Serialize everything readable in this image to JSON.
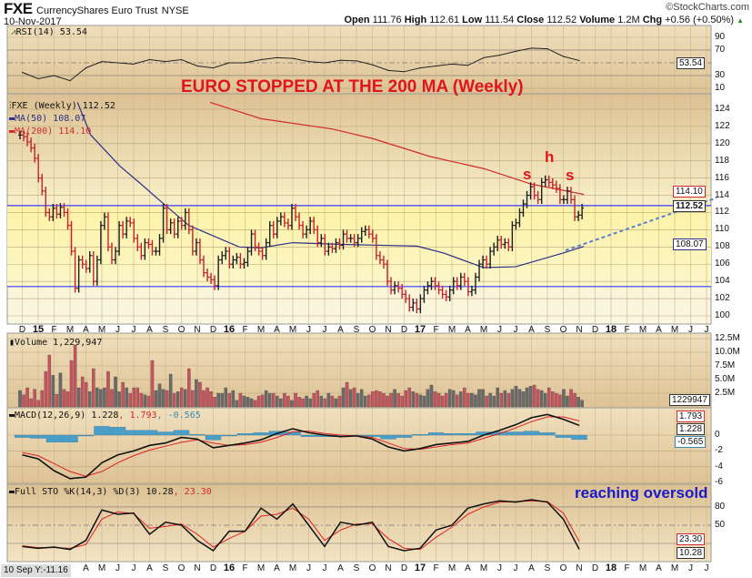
{
  "header": {
    "symbol": "FXE",
    "name": "CurrencyShares Euro Trust",
    "exchange": "NYSE",
    "date": "10-Nov-2017",
    "watermark": "©StockCharts.com",
    "open_label": "Open",
    "open": "111.76",
    "high_label": "High",
    "high": "112.61",
    "low_label": "Low",
    "low": "111.54",
    "close_label": "Close",
    "close": "112.52",
    "volume_label": "Volume",
    "volume": "1.2M",
    "chg_label": "Chg",
    "chg": "+0.56 (+0.50%)",
    "up_arrow": "▲"
  },
  "colors": {
    "up_bar": "#1e1e1e",
    "down_bar": "#c8202a",
    "ma50": "#2b2f8a",
    "ma200": "#d02a2a",
    "support_line": "#3a3aff",
    "trendline": "#5a7fd0",
    "histogram": "#4a9fc8",
    "annotation_red": "#e0151b",
    "annotation_blue": "#1a1acc"
  },
  "annotations": {
    "title": "EURO STOPPED AT THE 200 MA (Weekly)",
    "left_shoulder": "s",
    "head": "h",
    "right_shoulder": "s",
    "oversold": "reaching oversold"
  },
  "axis": {
    "months": [
      "D",
      "15",
      "F",
      "M",
      "A",
      "M",
      "J",
      "J",
      "A",
      "S",
      "O",
      "N",
      "D",
      "16",
      "F",
      "M",
      "A",
      "M",
      "J",
      "J",
      "A",
      "S",
      "O",
      "N",
      "D",
      "17",
      "F",
      "M",
      "A",
      "M",
      "J",
      "J",
      "A",
      "S",
      "O",
      "N",
      "D",
      "18",
      "F",
      "M",
      "A",
      "M",
      "J",
      "J"
    ],
    "bottom_info": "10 Sep Y:-11.16"
  },
  "chart_data": [
    {
      "type": "ohlc",
      "panel": "price",
      "label": "FXE (Weekly) 112.52",
      "start": "Dec 2014",
      "frequency": "weekly",
      "yticks": [
        "100",
        "102",
        "104",
        "106",
        "108",
        "110",
        "112",
        "114",
        "116",
        "118",
        "120",
        "122",
        "124"
      ],
      "ylim": [
        100,
        125
      ],
      "closes": [
        121.0,
        120.8,
        120.2,
        119.5,
        118.3,
        116.0,
        114.5,
        112.0,
        111.5,
        112.5,
        111.8,
        112.6,
        112.0,
        110.5,
        107.5,
        103.2,
        106.5,
        106.0,
        105.5,
        107.0,
        104.0,
        106.5,
        110.5,
        111.5,
        108.0,
        106.5,
        107.5,
        110.5,
        109.5,
        111.0,
        110.8,
        109.0,
        108.0,
        107.0,
        108.5,
        108.3,
        107.5,
        107.5,
        109.0,
        112.5,
        110.0,
        110.8,
        109.5,
        111.0,
        110.5,
        112.0,
        110.0,
        107.5,
        108.5,
        106.5,
        105.0,
        104.5,
        104.2,
        103.5,
        106.5,
        107.0,
        107.5,
        106.0,
        106.5,
        106.8,
        106.0,
        106.2,
        107.5,
        109.5,
        108.0,
        107.5,
        107.0,
        108.5,
        110.5,
        109.5,
        111.0,
        111.5,
        110.8,
        110.5,
        112.5,
        111.5,
        110.5,
        109.5,
        110.0,
        111.0,
        110.0,
        108.5,
        109.0,
        107.5,
        108.0,
        107.8,
        108.5,
        108.2,
        109.5,
        109.0,
        109.0,
        108.5,
        109.0,
        109.8,
        110.0,
        109.5,
        109.0,
        107.0,
        106.5,
        106.0,
        104.0,
        103.0,
        103.5,
        103.2,
        102.5,
        102.0,
        101.0,
        101.5,
        100.8,
        102.0,
        103.0,
        103.5,
        104.0,
        103.5,
        103.0,
        102.5,
        102.2,
        103.0,
        104.0,
        103.5,
        104.5,
        104.0,
        102.8,
        103.0,
        104.5,
        106.0,
        106.5,
        106.0,
        107.5,
        108.0,
        108.8,
        108.3,
        108.5,
        108.0,
        110.5,
        110.8,
        112.0,
        113.0,
        114.0,
        115.0,
        114.0,
        113.5,
        115.5,
        115.8,
        115.5,
        115.2,
        114.8,
        113.5,
        113.5,
        114.5,
        113.5,
        111.5,
        111.7,
        112.52
      ],
      "ma50": {
        "label": "MA(50) 108.07",
        "last": "108.07",
        "points": [
          [
            "2015-03-15",
            124.8
          ],
          [
            "2015-04-10",
            121.0
          ],
          [
            "2015-06-05",
            117.4
          ],
          [
            "2015-07-15",
            115.3
          ],
          [
            "2015-08-20",
            113.4
          ],
          [
            "2015-10-15",
            110.5
          ],
          [
            "2016-01-20",
            108.0
          ],
          [
            "2016-03-01",
            107.9
          ],
          [
            "2016-05-01",
            108.5
          ],
          [
            "2016-08-01",
            108.3
          ],
          [
            "2016-10-15",
            108.2
          ],
          [
            "2016-12-25",
            108.1
          ],
          [
            "2017-02-15",
            107.3
          ],
          [
            "2017-05-01",
            105.6
          ],
          [
            "2017-07-01",
            105.7
          ],
          [
            "2017-10-01",
            107.3
          ],
          [
            "2017-11-10",
            108.07
          ]
        ]
      },
      "ma200": {
        "label": "MA(200) 114.10",
        "last": "114.10",
        "points": [
          [
            "2015-11-25",
            124.8
          ],
          [
            "2016-03-01",
            122.9
          ],
          [
            "2016-07-15",
            121.7
          ],
          [
            "2016-10-01",
            120.6
          ],
          [
            "2017-01-20",
            118.5
          ],
          [
            "2017-05-01",
            117.1
          ],
          [
            "2017-08-01",
            115.3
          ],
          [
            "2017-11-10",
            114.1
          ]
        ]
      },
      "hlines": [
        112.8,
        103.4
      ],
      "trendline": [
        [
          "2017-10-05",
          107.6
        ],
        [
          "2018-07-20",
          113.7
        ]
      ],
      "last_tag": "112.52"
    },
    {
      "type": "line",
      "panel": "rsi",
      "label": "RSI(14) 53.54",
      "last_tag": "53.54",
      "frequency": "monthly",
      "start": "Dec 2014",
      "yticks": [
        "90",
        "70",
        "30",
        "10"
      ],
      "ylim": [
        0,
        100
      ],
      "levels": [
        70,
        30
      ],
      "midline": 50,
      "values": [
        35,
        25,
        30,
        22,
        42,
        52,
        50,
        48,
        55,
        52,
        55,
        45,
        42,
        50,
        50,
        55,
        58,
        57,
        52,
        50,
        54,
        53,
        47,
        38,
        36,
        42,
        45,
        48,
        46,
        58,
        62,
        68,
        73,
        72,
        60,
        53.54
      ]
    },
    {
      "type": "bar",
      "panel": "volume",
      "label": "Volume 1,229,947",
      "unit": "M",
      "last_tag": "1229947",
      "frequency": "weekly",
      "start": "Dec 2014",
      "yticks": [
        "12.5M",
        "10.0M",
        "7.5M",
        "5.0M",
        "2.5M"
      ],
      "ylim": [
        0,
        12.5
      ],
      "values": [
        3.0,
        2.2,
        3.5,
        1.5,
        3.2,
        1.2,
        3.0,
        6.5,
        9.5,
        5.8,
        2.3,
        6.2,
        3.2,
        2.8,
        8.5,
        11.3,
        3.5,
        5.5,
        4.5,
        2.8,
        7.0,
        3.5,
        3.2,
        3.5,
        6.5,
        3.2,
        5.5,
        2.8,
        4.5,
        3.5,
        2.5,
        3.5,
        3.5,
        2.5,
        2.2,
        2.0,
        8.5,
        3.0,
        4.2,
        3.2,
        3.0,
        6.0,
        2.5,
        2.8,
        3.5,
        3.2,
        7.0,
        3.0,
        5.0,
        4.5,
        3.0,
        3.5,
        2.8,
        1.8,
        2.5,
        2.5,
        3.5,
        2.5,
        3.0,
        1.2,
        2.5,
        2.0,
        1.8,
        1.5,
        1.2,
        2.0,
        2.2,
        3.0,
        2.5,
        2.5,
        2.0,
        1.5,
        2.5,
        2.0,
        1.2,
        2.5,
        1.8,
        1.5,
        2.0,
        1.5,
        2.5,
        3.0,
        2.0,
        1.5,
        2.5,
        2.0,
        1.5,
        2.0,
        3.5,
        4.5,
        3.2,
        3.5,
        2.5,
        3.2,
        2.0,
        2.2,
        2.8,
        3.0,
        2.8,
        2.5,
        2.0,
        2.5,
        3.2,
        2.5,
        2.0,
        3.0,
        3.5,
        2.8,
        2.5,
        2.2,
        2.0,
        3.2,
        4.0,
        2.8,
        2.5,
        2.0,
        2.5,
        3.2,
        3.0,
        2.2,
        2.8,
        3.5,
        2.5,
        2.5,
        2.2,
        3.2,
        3.2,
        2.0,
        2.5,
        2.0,
        3.5,
        2.5,
        3.0,
        2.5,
        3.2,
        3.8,
        3.2,
        2.8,
        3.5,
        3.8,
        4.0,
        3.2,
        3.0,
        2.5,
        3.5,
        2.8,
        2.5,
        2.2,
        3.2,
        2.0,
        3.2,
        2.5,
        1.8,
        1.23
      ]
    },
    {
      "type": "line",
      "panel": "macd",
      "label_main": "MACD(12,26,9) 1.228",
      "label_signal": ", 1.793",
      "label_hist": ", -0.565",
      "tags": {
        "signal": "1.793",
        "macd": "1.228",
        "hist": "-0.565"
      },
      "frequency": "monthly",
      "start": "Dec 2014",
      "yticks": [
        "0",
        "-2",
        "-4",
        "-6"
      ],
      "ylim": [
        -6.5,
        3
      ],
      "macd": [
        -2.5,
        -3.0,
        -4.5,
        -5.5,
        -5.3,
        -3.5,
        -2.5,
        -2.0,
        -1.3,
        -1.0,
        -0.3,
        -0.5,
        -1.6,
        -1.3,
        -1.0,
        -0.6,
        0.2,
        0.8,
        0.3,
        0.0,
        -0.2,
        -0.1,
        -0.5,
        -1.5,
        -2.0,
        -1.7,
        -1.2,
        -1.0,
        -0.8,
        0.0,
        0.6,
        1.3,
        2.2,
        2.6,
        2.0,
        1.228
      ],
      "signal": [
        -2.2,
        -2.6,
        -3.6,
        -4.6,
        -5.2,
        -4.6,
        -3.5,
        -2.6,
        -1.9,
        -1.4,
        -0.9,
        -0.6,
        -1.0,
        -1.3,
        -1.2,
        -0.9,
        -0.3,
        0.4,
        0.5,
        0.2,
        0.0,
        -0.1,
        -0.3,
        -1.0,
        -1.7,
        -1.8,
        -1.5,
        -1.2,
        -1.0,
        -0.4,
        0.2,
        0.9,
        1.7,
        2.3,
        2.3,
        1.793
      ]
    },
    {
      "type": "line",
      "panel": "stochastic",
      "label_main": "Full STO %K(14,3) %D(3) 10.28",
      "label_d": ", 23.30",
      "tags": {
        "d": "23.30",
        "k": "10.28"
      },
      "frequency": "monthly",
      "start": "Dec 2014",
      "yticks": [
        "80",
        "50"
      ],
      "ylim": [
        0,
        100
      ],
      "levels": [
        80,
        20
      ],
      "midline": 50,
      "k": [
        15,
        12,
        14,
        10,
        25,
        75,
        68,
        70,
        35,
        55,
        50,
        25,
        8,
        40,
        40,
        78,
        60,
        85,
        50,
        15,
        55,
        50,
        55,
        15,
        8,
        12,
        42,
        50,
        78,
        85,
        90,
        88,
        92,
        88,
        60,
        10.28
      ],
      "d": [
        16,
        13,
        13,
        12,
        18,
        60,
        72,
        69,
        45,
        48,
        52,
        35,
        14,
        28,
        40,
        65,
        68,
        78,
        60,
        25,
        42,
        52,
        52,
        28,
        12,
        10,
        30,
        47,
        68,
        80,
        88,
        89,
        90,
        89,
        70,
        23.3
      ]
    }
  ]
}
